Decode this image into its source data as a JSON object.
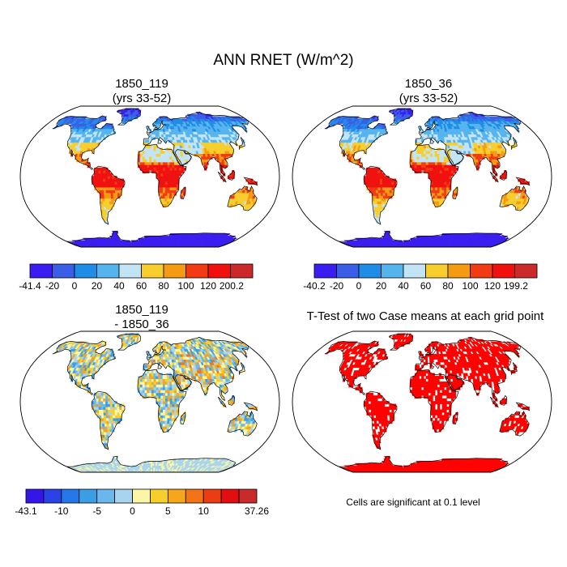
{
  "title": "ANN RNET (W/m^2)",
  "panels": {
    "p1": {
      "title_line1": "1850_119",
      "title_line2": "(yrs 33-52)"
    },
    "p2": {
      "title_line1": "1850_36",
      "title_line2": "(yrs 33-52)"
    },
    "p3": {
      "title_line1": "1850_119",
      "title_line2": "- 1850_36"
    },
    "p4": {
      "title": "T-Test of two Case means at each grid point",
      "note": "Cells are significant at 0.1 level"
    }
  },
  "colors": {
    "seq": [
      "#3a1df0",
      "#3a5ee6",
      "#1f8ce8",
      "#55b4ee",
      "#c2e4f5",
      "#f7ce2d",
      "#f59a13",
      "#f23a14",
      "#f0110f",
      "#cc2a2a"
    ],
    "div": [
      "#3417e8",
      "#2b43e6",
      "#2577ea",
      "#3a9ee6",
      "#6ab7ec",
      "#a9d4ef",
      "#fbf6a6",
      "#f7cf2c",
      "#f5a61a",
      "#f27417",
      "#ec3c14",
      "#e20e10",
      "#c92a2a"
    ],
    "ttest": "#ff0000",
    "ocean": "#ffffff",
    "coast": "#000000"
  },
  "chart_data": [
    {
      "type": "heatmap",
      "name": "1850_119 annual net radiation",
      "title": "1850_119 (yrs 33-52)",
      "units": "W/m^2",
      "colorbar_ticks": [
        "-41.4",
        "-20",
        "0",
        "20",
        "40",
        "60",
        "80",
        "100",
        "120",
        "200.2"
      ],
      "bounds": [
        -41.4,
        -20,
        0,
        20,
        40,
        60,
        80,
        100,
        120,
        200.2
      ],
      "min": -41.4,
      "max": 200.2
    },
    {
      "type": "heatmap",
      "name": "1850_36 annual net radiation",
      "title": "1850_36 (yrs 33-52)",
      "units": "W/m^2",
      "colorbar_ticks": [
        "-40.2",
        "-20",
        "0",
        "20",
        "40",
        "60",
        "80",
        "100",
        "120",
        "199.2"
      ],
      "bounds": [
        -40.2,
        -20,
        0,
        20,
        40,
        60,
        80,
        100,
        120,
        199.2
      ],
      "min": -40.2,
      "max": 199.2
    },
    {
      "type": "heatmap",
      "name": "difference 1850_119 - 1850_36",
      "title": "1850_119 - 1850_36",
      "units": "W/m^2",
      "colorbar_ticks": [
        "-43.1",
        "-10",
        "-5",
        "0",
        "5",
        "10",
        "37.26"
      ],
      "tick_boxes": [
        0,
        2,
        4,
        6,
        8,
        10,
        13
      ],
      "min": -43.1,
      "max": 37.26
    },
    {
      "type": "heatmap",
      "name": "t-test significance",
      "title": "T-Test of two Case means at each grid point",
      "significance_level": 0.1
    }
  ]
}
